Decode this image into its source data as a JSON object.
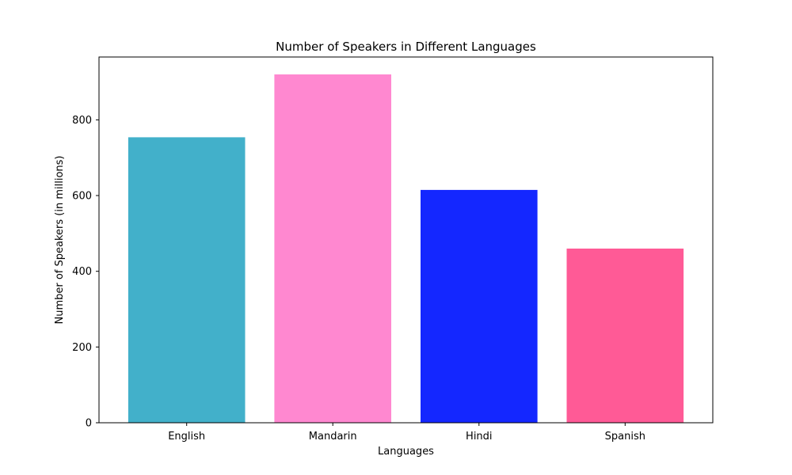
{
  "chart_data": {
    "type": "bar",
    "title": "Number of Speakers in Different Languages",
    "xlabel": "Languages",
    "ylabel": "Number of Speakers (in millions)",
    "categories": [
      "English",
      "Mandarin",
      "Hindi",
      "Spanish"
    ],
    "values": [
      754,
      920,
      615,
      460
    ],
    "colors": [
      "#42b0ca",
      "#ff88d0",
      "#1427ff",
      "#ff5a96"
    ],
    "ylim": [
      0,
      966
    ],
    "yticks": [
      0,
      200,
      400,
      600,
      800
    ],
    "ytick_labels": [
      "0",
      "200",
      "400",
      "600",
      "800"
    ],
    "grid": false,
    "legend": "none"
  }
}
